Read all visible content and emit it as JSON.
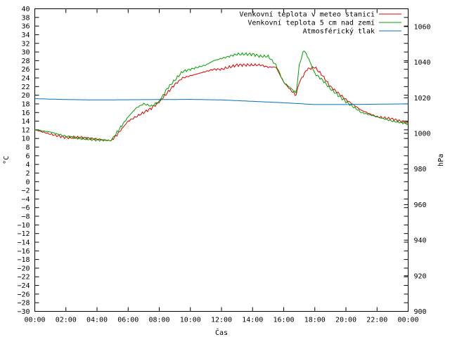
{
  "chart_data": {
    "type": "line",
    "title": "",
    "xlabel": "Čas",
    "ylabel": "°C",
    "y2label": "hPa",
    "xlim": [
      0,
      24
    ],
    "ylim": [
      -30,
      40
    ],
    "y2lim": [
      900,
      1070
    ],
    "x_tick_labels": [
      "00:00",
      "02:00",
      "04:00",
      "06:00",
      "08:00",
      "10:00",
      "12:00",
      "14:00",
      "16:00",
      "18:00",
      "20:00",
      "22:00",
      "00:00"
    ],
    "y_ticks": [
      40,
      38,
      36,
      34,
      32,
      30,
      28,
      26,
      24,
      22,
      20,
      18,
      16,
      14,
      12,
      10,
      8,
      6,
      4,
      2,
      0,
      -2,
      -4,
      -6,
      -8,
      -10,
      -12,
      -14,
      -16,
      -18,
      -20,
      -22,
      -24,
      -26,
      -28,
      -30
    ],
    "y_tick_labels": [
      "40",
      "38",
      "36",
      "34",
      "32",
      "30",
      "28",
      "26",
      "24",
      "22",
      "20",
      "18",
      "16",
      "14",
      "12",
      "10",
      "8",
      "6",
      "4",
      "2",
      "0",
      "−2",
      "−4",
      "−6",
      "−8",
      "−10",
      "−12",
      "−14",
      "−16",
      "−18",
      "−20",
      "−22",
      "−24",
      "−26",
      "−28",
      "−30"
    ],
    "y2_ticks": [
      1060,
      1040,
      1020,
      1000,
      980,
      960,
      940,
      920,
      900
    ],
    "y2_tick_labels": [
      "1060",
      "1040",
      "1020",
      "1000",
      "980",
      "960",
      "940",
      "920",
      "900"
    ],
    "grid": false,
    "legend_position": "top-right",
    "series": [
      {
        "name": "Venkovní teplota v meteo stanici",
        "color": "#dd0000",
        "axis": "left",
        "x": [
          0,
          1,
          2,
          3,
          4,
          4.9,
          5.2,
          6,
          6.5,
          7,
          7.5,
          8,
          8.5,
          9,
          9.5,
          10,
          10.5,
          11,
          11.5,
          12,
          12.5,
          13,
          13.5,
          14,
          14.5,
          15,
          15.5,
          16,
          16.5,
          16.8,
          17,
          17.5,
          18,
          18.5,
          19,
          19.5,
          20,
          21,
          22,
          23,
          24
        ],
        "values": [
          12,
          11,
          10.2,
          10.2,
          9.8,
          9.5,
          10.5,
          14,
          15,
          16,
          17,
          18.5,
          20.5,
          22.5,
          24,
          24.5,
          25,
          25.5,
          26,
          26,
          26.5,
          27,
          27,
          27,
          27,
          26.5,
          26.5,
          23,
          21,
          20,
          23,
          26,
          26.5,
          24.5,
          22,
          20.5,
          19,
          16.5,
          15,
          14.5,
          13.5
        ]
      },
      {
        "name": "Venkovní teplota 5 cm nad zemí",
        "color": "#00a000",
        "axis": "left",
        "x": [
          0,
          1,
          2,
          3,
          4,
          4.9,
          5.2,
          6,
          6.5,
          7,
          7.5,
          8,
          8.5,
          9,
          9.5,
          10,
          10.5,
          11,
          11.5,
          12,
          12.5,
          13,
          13.5,
          14,
          14.5,
          15,
          15.5,
          16,
          16.5,
          16.8,
          17,
          17.3,
          17.6,
          18,
          18.5,
          19,
          19.5,
          20,
          21,
          22,
          23,
          24
        ],
        "values": [
          12,
          11.5,
          10.5,
          10,
          9.7,
          9.5,
          11,
          15,
          17,
          18,
          17.5,
          18.5,
          21.5,
          23.5,
          25.5,
          26,
          26.5,
          27,
          28,
          28.5,
          29,
          29.5,
          29.5,
          29.5,
          29,
          29,
          27,
          23,
          21.5,
          20.5,
          27,
          30.5,
          28.5,
          25,
          23.5,
          21.5,
          20,
          18.5,
          16,
          15,
          14,
          13.5
        ]
      },
      {
        "name": "Atmosférický tlak",
        "color": "#0070c0",
        "axis": "right",
        "x": [
          0,
          2,
          4,
          6,
          8,
          10,
          12,
          14,
          16,
          17,
          18,
          20,
          22,
          24
        ],
        "values": [
          1019.5,
          1019,
          1018.8,
          1018.9,
          1019,
          1019.1,
          1018.8,
          1018,
          1017.2,
          1016.7,
          1016.2,
          1016.2,
          1016.4,
          1016.6
        ]
      }
    ]
  }
}
